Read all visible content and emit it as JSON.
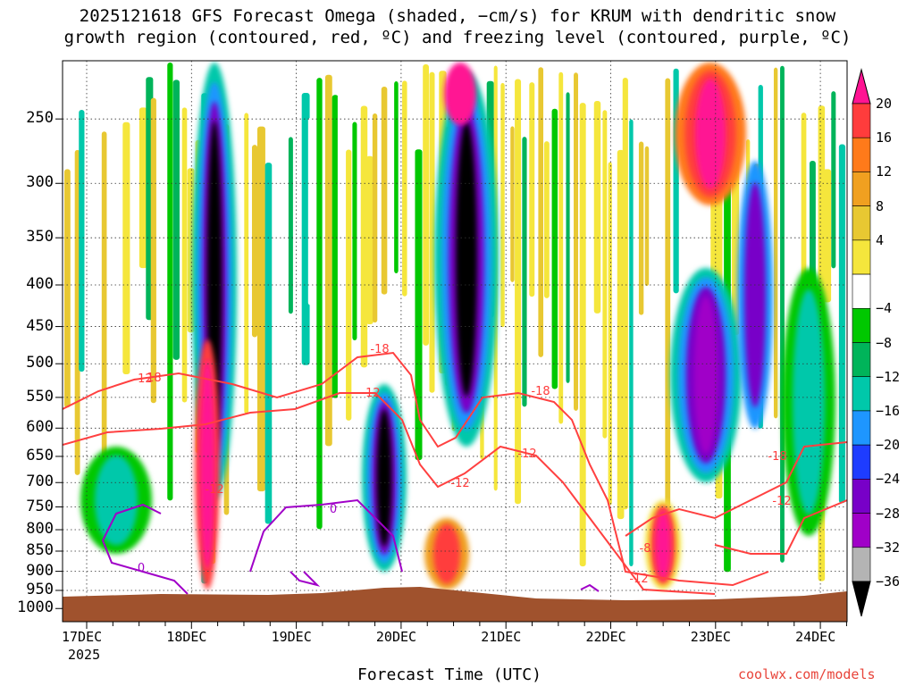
{
  "title_line1": "2025121618 GFS Forecast Omega (shaded, −cm/s) for KRUM with dendritic snow",
  "title_line2": "growth region (contoured, red, ºC) and freezing level (contoured, purple, ºC)",
  "xlabel": "Forecast Time (UTC)",
  "credit": "coolwx.com/models",
  "chart_data": {
    "type": "heatmap",
    "y_ticks": [
      "250",
      "300",
      "350",
      "400",
      "450",
      "500",
      "550",
      "600",
      "650",
      "700",
      "750",
      "800",
      "850",
      "900",
      "950",
      "1000"
    ],
    "x_ticks": [
      "17DEC",
      "18DEC",
      "19DEC",
      "20DEC",
      "21DEC",
      "22DEC",
      "23DEC",
      "24DEC"
    ],
    "x_year": "2025",
    "colorbar_labels": [
      "20",
      "16",
      "12",
      "8",
      "4",
      "−4",
      "−8",
      "−12",
      "−16",
      "−20",
      "−24",
      "−28",
      "−32",
      "−36"
    ],
    "colorbar_colors": [
      "#ff1493",
      "#ff3c3c",
      "#ff7a1a",
      "#f0a020",
      "#e8c832",
      "#f5e63c",
      "#ffffff",
      "#00c800",
      "#00b45a",
      "#00c8aa",
      "#1e96ff",
      "#1e3cff",
      "#7800c8",
      "#a000c8",
      "#b4b4b4",
      "#000000"
    ],
    "red_contour_labels": [
      "-18",
      "-18",
      "-12",
      "-18",
      "-12",
      "-12",
      "-12",
      "-18",
      "-12",
      "-8",
      "-12",
      "-12"
    ],
    "purple_contour_labels": [
      "0",
      "0"
    ],
    "ground_color": "#a0522d"
  }
}
